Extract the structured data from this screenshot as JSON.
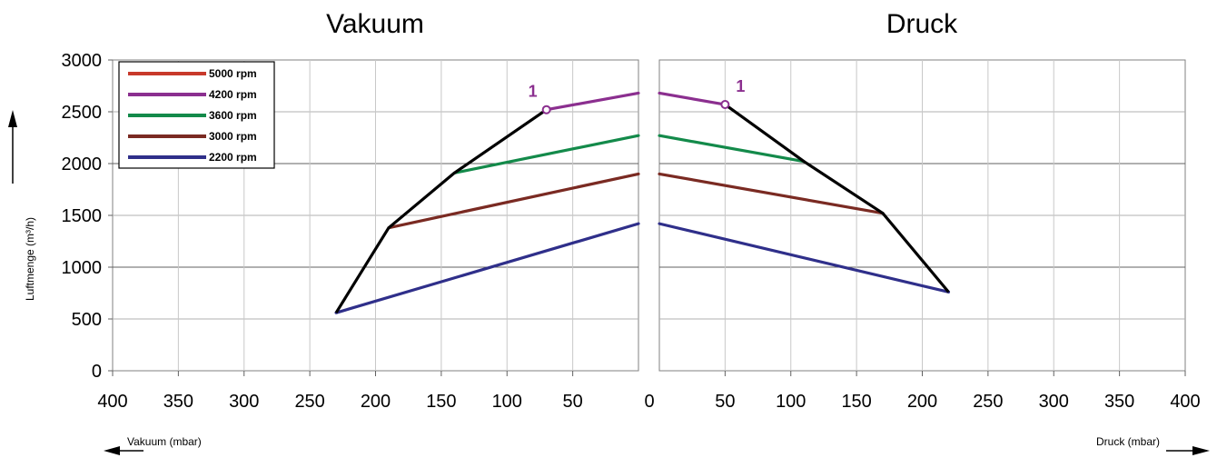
{
  "chart_data": {
    "type": "line",
    "left_title": "Vakuum",
    "right_title": "Druck",
    "ylabel": "Luftmenge (m³/h)",
    "left_xlabel": "Vakuum (mbar)",
    "right_xlabel": "Druck (mbar)",
    "ylim": [
      0,
      3000
    ],
    "yticks": [
      "0",
      "500",
      "1000",
      "1500",
      "2000",
      "2500",
      "3000"
    ],
    "left_xlim": [
      400,
      0
    ],
    "right_xlim": [
      0,
      400
    ],
    "left_xticks": [
      "400",
      "350",
      "300",
      "250",
      "200",
      "150",
      "100",
      "50"
    ],
    "center_xtick": "0",
    "right_xticks": [
      "50",
      "100",
      "150",
      "200",
      "250",
      "300",
      "350",
      "400"
    ],
    "grid": true,
    "legend_placement": "top-left",
    "series": [
      {
        "name": "5000 rpm",
        "color": "#c8392b",
        "vakuum": [],
        "druck": []
      },
      {
        "name": "4200 rpm",
        "color": "#8b2f8f",
        "vakuum": [
          [
            70,
            2520
          ],
          [
            0,
            2680
          ]
        ],
        "druck": [
          [
            0,
            2680
          ],
          [
            50,
            2570
          ]
        ]
      },
      {
        "name": "3600 rpm",
        "color": "#138a4a",
        "vakuum": [
          [
            140,
            1910
          ],
          [
            0,
            2270
          ]
        ],
        "druck": [
          [
            0,
            2270
          ],
          [
            110,
            2020
          ]
        ]
      },
      {
        "name": "3000 rpm",
        "color": "#7a2a22",
        "vakuum": [
          [
            190,
            1380
          ],
          [
            0,
            1900
          ]
        ],
        "druck": [
          [
            0,
            1900
          ],
          [
            170,
            1520
          ]
        ]
      },
      {
        "name": "2200 rpm",
        "color": "#2f2f8a",
        "vakuum": [
          [
            230,
            560
          ],
          [
            0,
            1420
          ]
        ],
        "druck": [
          [
            0,
            1420
          ],
          [
            220,
            760
          ]
        ]
      }
    ],
    "envelope": {
      "color": "#000000",
      "vakuum": [
        [
          230,
          560
        ],
        [
          190,
          1380
        ],
        [
          140,
          1910
        ],
        [
          70,
          2520
        ]
      ],
      "druck": [
        [
          50,
          2570
        ],
        [
          110,
          2020
        ],
        [
          170,
          1520
        ],
        [
          220,
          760
        ]
      ]
    },
    "annotations": [
      {
        "text": "1",
        "side": "vakuum",
        "x": 70,
        "y": 2520,
        "color": "#8b2f8f"
      },
      {
        "text": "1",
        "side": "druck",
        "x": 50,
        "y": 2570,
        "color": "#8b2f8f"
      }
    ]
  }
}
